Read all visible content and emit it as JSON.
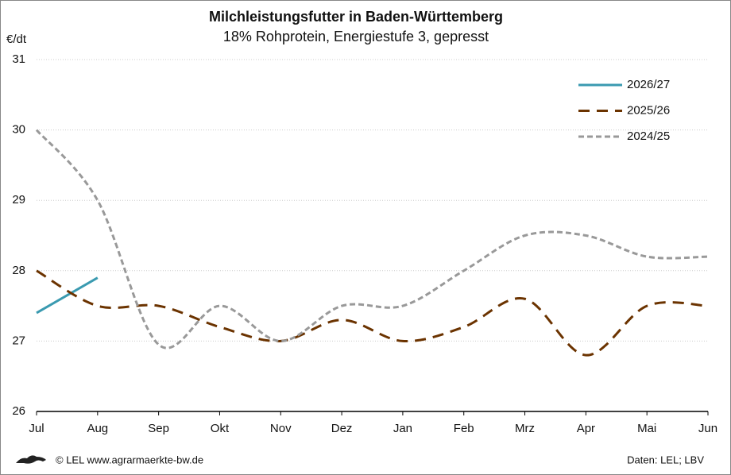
{
  "chart_data": {
    "type": "line",
    "title": "Milchleistungsfutter in Baden-Württemberg",
    "subtitle": "18% Rohprotein, Energiestufe 3, gepresst",
    "y_label": "€/dt",
    "categories": [
      "Jul",
      "Aug",
      "Sep",
      "Okt",
      "Nov",
      "Dez",
      "Jan",
      "Feb",
      "Mrz",
      "Apr",
      "Mai",
      "Jun"
    ],
    "series": [
      {
        "name": "2026/27",
        "color": "#3a9ab0",
        "dash": "solid",
        "values": [
          27.4,
          27.9,
          null,
          null,
          null,
          null,
          null,
          null,
          null,
          null,
          null,
          null
        ]
      },
      {
        "name": "2025/26",
        "color": "#6b3300",
        "dash": "dashed",
        "values": [
          28.0,
          27.5,
          27.5,
          27.2,
          27.0,
          27.3,
          27.0,
          27.2,
          27.6,
          26.8,
          27.5,
          27.5
        ]
      },
      {
        "name": "2024/25",
        "color": "#999999",
        "dash": "dotted",
        "values": [
          30.0,
          29.0,
          26.95,
          27.5,
          27.0,
          27.5,
          27.5,
          28.0,
          28.5,
          28.5,
          28.2,
          28.2
        ]
      }
    ],
    "ylim": [
      26,
      31
    ],
    "yticks": [
      26,
      27,
      28,
      29,
      30,
      31
    ],
    "grid": true,
    "legend": "upper right",
    "source_left": "© LEL www.agrarmaerkte-bw.de",
    "source_right": "Daten: LEL; LBV"
  }
}
